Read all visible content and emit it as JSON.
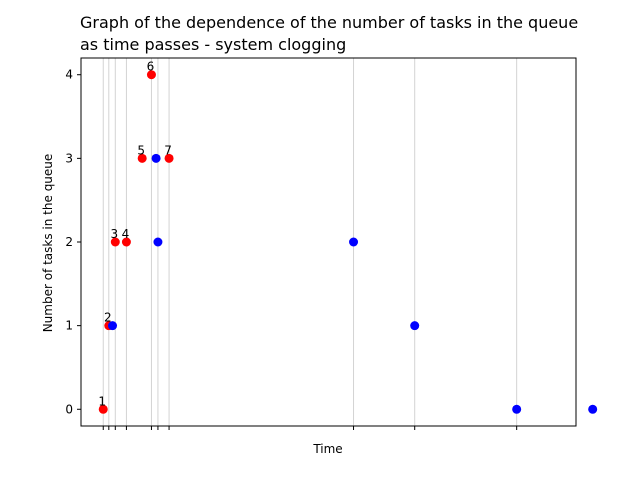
{
  "chart_data": {
    "type": "scatter",
    "title": "Graph of the dependence of the number of tasks in the queue\nas time passes - system clogging",
    "xlabel": "Time",
    "ylabel": "Number of tasks in the queue",
    "ylim": [
      -0.2,
      4.2
    ],
    "xlim": [
      -1.2,
      25.5
    ],
    "yticks": [
      0,
      1,
      2,
      3,
      4
    ],
    "xticks": [
      0,
      0.3,
      0.65,
      1.25,
      2.6,
      2.95,
      3.55,
      13.5,
      16.8,
      22.3,
      26.4
    ],
    "grid": "vertical",
    "colors": {
      "arrivals": "#ff0000",
      "departures": "#0000ff",
      "grid": "#d3d3d3"
    },
    "series": [
      {
        "color": "#ff0000",
        "points": [
          {
            "x": 0,
            "y": 0,
            "label": "1"
          },
          {
            "x": 0.3,
            "y": 1,
            "label": "2"
          },
          {
            "x": 0.65,
            "y": 2,
            "label": "3"
          },
          {
            "x": 1.25,
            "y": 2,
            "label": "4"
          },
          {
            "x": 2.1,
            "y": 3,
            "label": "5"
          },
          {
            "x": 2.6,
            "y": 4,
            "label": "6"
          },
          {
            "x": 3.55,
            "y": 3,
            "label": "7"
          }
        ]
      },
      {
        "color": "#0000ff",
        "points": [
          {
            "x": 0.5,
            "y": 1
          },
          {
            "x": 2.85,
            "y": 3
          },
          {
            "x": 2.95,
            "y": 2
          },
          {
            "x": 13.5,
            "y": 2
          },
          {
            "x": 16.8,
            "y": 1
          },
          {
            "x": 22.3,
            "y": 0
          },
          {
            "x": 26.4,
            "y": 0
          }
        ]
      }
    ]
  }
}
